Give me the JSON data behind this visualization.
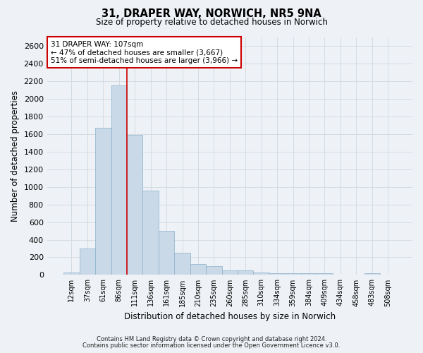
{
  "title_line1": "31, DRAPER WAY, NORWICH, NR5 9NA",
  "title_line2": "Size of property relative to detached houses in Norwich",
  "xlabel": "Distribution of detached houses by size in Norwich",
  "ylabel": "Number of detached properties",
  "categories": [
    "12sqm",
    "37sqm",
    "61sqm",
    "86sqm",
    "111sqm",
    "136sqm",
    "161sqm",
    "185sqm",
    "210sqm",
    "235sqm",
    "260sqm",
    "285sqm",
    "310sqm",
    "334sqm",
    "359sqm",
    "384sqm",
    "409sqm",
    "434sqm",
    "458sqm",
    "483sqm",
    "508sqm"
  ],
  "values": [
    25,
    300,
    1670,
    2150,
    1590,
    960,
    500,
    250,
    120,
    100,
    50,
    50,
    30,
    20,
    20,
    20,
    20,
    5,
    5,
    20,
    5
  ],
  "bar_color": "#c9d9e8",
  "bar_edge_color": "#8ab0cc",
  "vline_color": "#cc0000",
  "annotation_text": "31 DRAPER WAY: 107sqm\n← 47% of detached houses are smaller (3,667)\n51% of semi-detached houses are larger (3,966) →",
  "annotation_box_facecolor": "#ffffff",
  "annotation_box_edgecolor": "#cc0000",
  "ylim": [
    0,
    2700
  ],
  "yticks": [
    0,
    200,
    400,
    600,
    800,
    1000,
    1200,
    1400,
    1600,
    1800,
    2000,
    2200,
    2400,
    2600
  ],
  "grid_color": "#d0d8e0",
  "footnote1": "Contains HM Land Registry data © Crown copyright and database right 2024.",
  "footnote2": "Contains public sector information licensed under the Open Government Licence v3.0.",
  "bg_color": "#eef2f6",
  "plot_bg_color": "#eef2f6",
  "vline_bar_index": 3.5
}
